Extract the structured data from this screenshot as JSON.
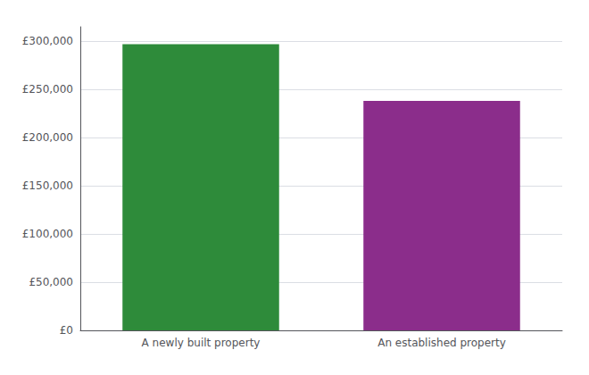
{
  "chart_data": {
    "type": "bar",
    "categories": [
      "A newly built property",
      "An established property"
    ],
    "values": [
      297000,
      238000
    ],
    "colors": [
      "#2e8b3a",
      "#8b2d8b"
    ],
    "ylim": [
      0,
      315000
    ],
    "yticks": [
      {
        "value": 0,
        "label": "£0"
      },
      {
        "value": 50000,
        "label": "£50,000"
      },
      {
        "value": 100000,
        "label": "£100,000"
      },
      {
        "value": 150000,
        "label": "£150,000"
      },
      {
        "value": 200000,
        "label": "£200,000"
      },
      {
        "value": 250000,
        "label": "£250,000"
      },
      {
        "value": 300000,
        "label": "£300,000"
      }
    ],
    "grid": true
  }
}
